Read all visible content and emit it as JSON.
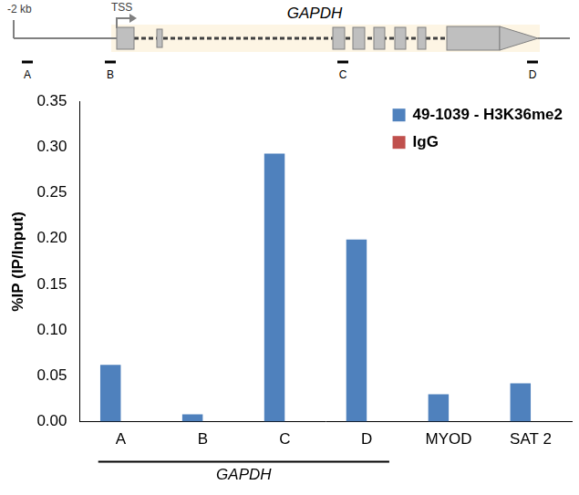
{
  "gene_diagram": {
    "start_label": "-2 kb",
    "tss_label": "TSS",
    "gene": "GAPDH",
    "primers": [
      "A",
      "B",
      "C",
      "D"
    ]
  },
  "chart_data": {
    "type": "bar",
    "y_label": "%IP (IP/Input)",
    "categories": [
      "A",
      "B",
      "C",
      "D",
      "MYOD",
      "SAT 2"
    ],
    "series": [
      {
        "name": "49-1039 - H3K36me2",
        "color": "#4f81bd",
        "values": [
          0.062,
          0.008,
          0.293,
          0.199,
          0.03,
          0.042
        ]
      },
      {
        "name": "IgG",
        "color": "#c0504d",
        "values": [
          0,
          0,
          0,
          0,
          0,
          0
        ]
      }
    ],
    "ylim": [
      0,
      0.35
    ],
    "yticks": [
      {
        "value": 0,
        "label": "0.00"
      },
      {
        "value": 0.05,
        "label": "0.05"
      },
      {
        "value": 0.1,
        "label": "0.10"
      },
      {
        "value": 0.15,
        "label": "0.15"
      },
      {
        "value": 0.2,
        "label": "0.20"
      },
      {
        "value": 0.25,
        "label": "0.25"
      },
      {
        "value": 0.3,
        "label": "0.30"
      },
      {
        "value": 0.35,
        "label": "0.35"
      }
    ],
    "grid": false,
    "legend": "top-right",
    "annotations": [
      {
        "text": "GAPDH",
        "from": "A",
        "to": "D"
      }
    ]
  }
}
